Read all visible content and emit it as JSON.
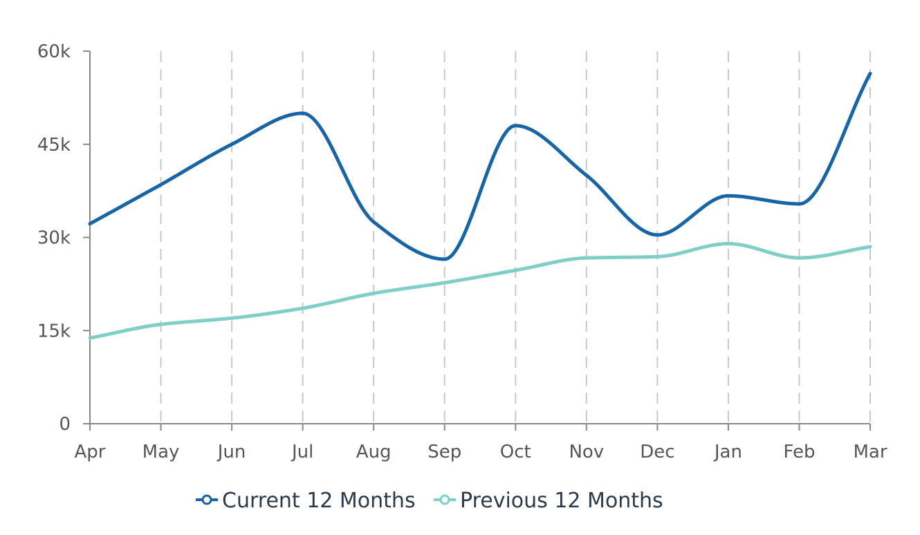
{
  "chart_data": {
    "type": "line",
    "categories": [
      "Apr",
      "May",
      "Jun",
      "Jul",
      "Aug",
      "Sep",
      "Oct",
      "Nov",
      "Dec",
      "Jan",
      "Feb",
      "Mar"
    ],
    "series": [
      {
        "name": "Current 12 Months",
        "color": "#1565a8",
        "values": [
          32200,
          38500,
          45000,
          50000,
          32500,
          26500,
          48000,
          40000,
          30400,
          36700,
          35400,
          56400
        ]
      },
      {
        "name": "Previous 12 Months",
        "color": "#7dcfc8",
        "values": [
          13800,
          16000,
          17000,
          18600,
          21000,
          22700,
          24700,
          26700,
          26900,
          29000,
          26700,
          28500
        ]
      }
    ],
    "yticks": [
      0,
      15000,
      30000,
      45000,
      60000
    ],
    "ytick_labels": [
      "0",
      "15k",
      "30k",
      "45k",
      "60k"
    ],
    "ylim": [
      0,
      60000
    ],
    "grid": "vertical dashed",
    "legend_position": "bottom-center"
  }
}
